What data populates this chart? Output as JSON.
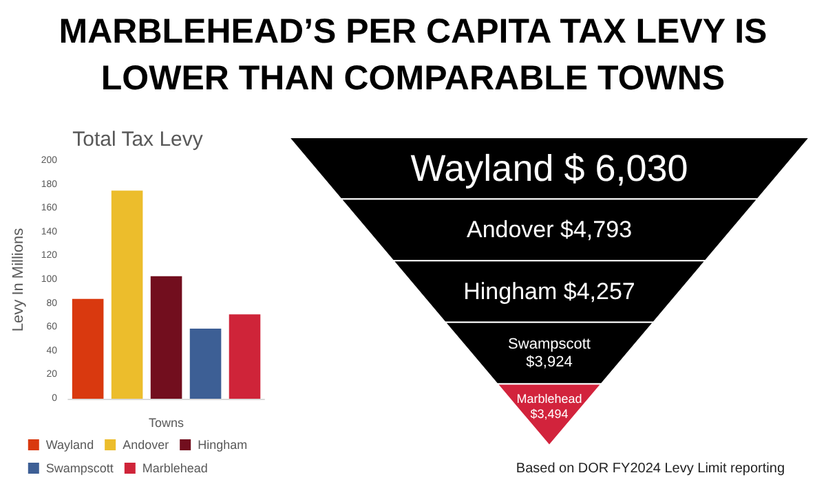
{
  "chart_data": [
    {
      "type": "bar",
      "title": "Total Tax Levy",
      "xlabel": "Towns",
      "ylabel": "Levy In Millions",
      "categories": [
        null,
        null,
        null,
        null,
        null
      ],
      "series": [
        {
          "name": "Wayland",
          "color": "#d9390f",
          "values": [
            84,
            null,
            null,
            null,
            null
          ]
        },
        {
          "name": "Andover",
          "color": "#ecbd2c",
          "values": [
            null,
            175,
            null,
            null,
            null
          ]
        },
        {
          "name": "Hingham",
          "color": "#720e1e",
          "values": [
            null,
            null,
            103,
            null,
            null
          ]
        },
        {
          "name": "Swampscott",
          "color": "#3d5f95",
          "values": [
            null,
            null,
            null,
            59,
            null
          ]
        },
        {
          "name": "Marblehead",
          "color": "#cf2439",
          "values": [
            null,
            null,
            null,
            null,
            71
          ]
        }
      ],
      "ylim": [
        0,
        200
      ],
      "yticks": [
        0,
        20,
        40,
        60,
        80,
        100,
        120,
        140,
        160,
        180,
        200
      ],
      "grid": false,
      "legend": "bottom"
    },
    {
      "type": "other",
      "title": "MARBLEHEAD’S PER CAPITA TAX LEVY IS LOWER THAN COMPARABLE TOWNS",
      "categories": [
        "Wayland $ 6,030",
        "Andover $4,793",
        "Hingham $4,257",
        "Swampscott $3,924",
        "Marblehead $3,494"
      ],
      "colors": [
        "#000000",
        "#000000",
        "#000000",
        "#000000",
        "#d2233c"
      ],
      "annotations": [
        "Based on DOR FY2024 Levy Limit reporting"
      ]
    }
  ]
}
